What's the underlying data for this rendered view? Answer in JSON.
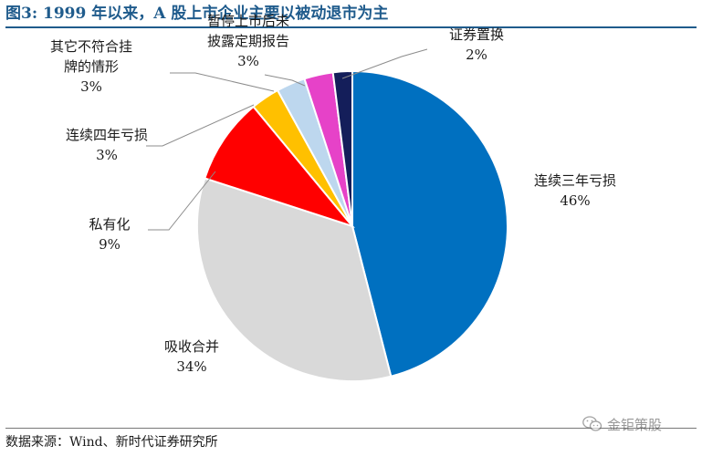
{
  "header": {
    "title": "图3:   1999 年以来，A 股上市企业主要以被动退市为主"
  },
  "footer": {
    "source": "数据来源：Wind、新时代证券研究所",
    "watermark": "金钜策股"
  },
  "icons": {
    "watermark_icon": "wechat-icon"
  },
  "chart_data": {
    "type": "pie",
    "title": "",
    "start_angle_deg": 90,
    "direction": "clockwise",
    "slices": [
      {
        "label": "连续三年亏损",
        "label_lines": [
          "连续三年亏损"
        ],
        "value_label": "46%",
        "value": 46,
        "color": "#0070C0"
      },
      {
        "label": "吸收合并",
        "label_lines": [
          "吸收合并"
        ],
        "value_label": "34%",
        "value": 34,
        "color": "#D9D9D9"
      },
      {
        "label": "私有化",
        "label_lines": [
          "私有化"
        ],
        "value_label": "9%",
        "value": 9,
        "color": "#FF0000"
      },
      {
        "label": "连续四年亏损",
        "label_lines": [
          "连续四年亏损"
        ],
        "value_label": "3%",
        "value": 3,
        "color": "#FFC000"
      },
      {
        "label": "其它不符合挂牌的情形",
        "label_lines": [
          "其它不符合挂",
          "牌的情形"
        ],
        "value_label": "3%",
        "value": 3,
        "color": "#BDD7EE"
      },
      {
        "label": "暂停上市后未披露定期报告",
        "label_lines": [
          "暂停上市后未",
          "披露定期报告"
        ],
        "value_label": "3%",
        "value": 3,
        "color": "#E642C8"
      },
      {
        "label": "证券置换",
        "label_lines": [
          "证券置换"
        ],
        "value_label": "2%",
        "value": 2,
        "color": "#141E5A"
      }
    ]
  }
}
